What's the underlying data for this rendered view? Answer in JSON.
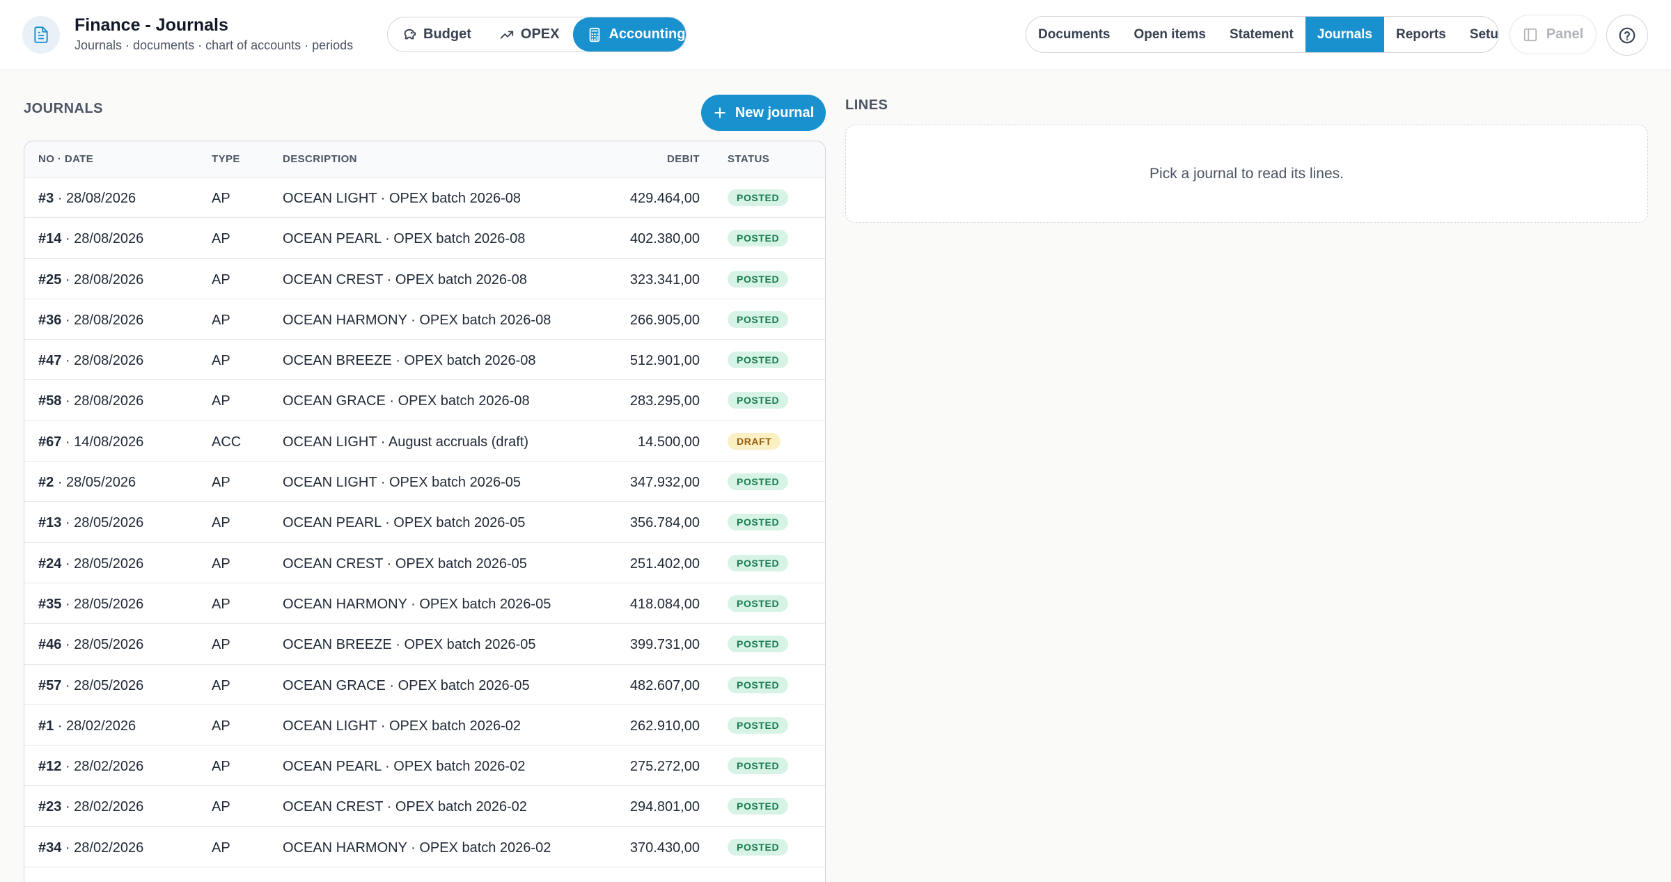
{
  "header": {
    "title": "Finance - Journals",
    "subtitle": "Journals · documents · chart of accounts · periods",
    "app_icon": "document-icon",
    "modules": [
      {
        "label": "Budget",
        "icon": "piggy-bank-icon",
        "active": false
      },
      {
        "label": "OPEX",
        "icon": "trend-up-icon",
        "active": false
      },
      {
        "label": "Accounting",
        "icon": "calculator-icon",
        "active": true
      }
    ],
    "subnav": [
      {
        "label": "Documents",
        "active": false
      },
      {
        "label": "Open items",
        "active": false
      },
      {
        "label": "Statement",
        "active": false
      },
      {
        "label": "Journals",
        "active": true
      },
      {
        "label": "Reports",
        "active": false
      },
      {
        "label": "Setup",
        "active": false
      }
    ],
    "panel_label": "Panel",
    "help_icon": "question-circle-icon"
  },
  "journals": {
    "section_title": "JOURNALS",
    "new_button_label": "New journal",
    "columns": {
      "no_date": "NO · DATE",
      "type": "TYPE",
      "description": "DESCRIPTION",
      "debit": "DEBIT",
      "status": "STATUS"
    },
    "rows": [
      {
        "no": "#3",
        "date": "28/08/2026",
        "type": "AP",
        "description": "OCEAN LIGHT · OPEX batch 2026-08",
        "debit": "429.464,00",
        "status": "POSTED"
      },
      {
        "no": "#14",
        "date": "28/08/2026",
        "type": "AP",
        "description": "OCEAN PEARL · OPEX batch 2026-08",
        "debit": "402.380,00",
        "status": "POSTED"
      },
      {
        "no": "#25",
        "date": "28/08/2026",
        "type": "AP",
        "description": "OCEAN CREST · OPEX batch 2026-08",
        "debit": "323.341,00",
        "status": "POSTED"
      },
      {
        "no": "#36",
        "date": "28/08/2026",
        "type": "AP",
        "description": "OCEAN HARMONY · OPEX batch 2026-08",
        "debit": "266.905,00",
        "status": "POSTED"
      },
      {
        "no": "#47",
        "date": "28/08/2026",
        "type": "AP",
        "description": "OCEAN BREEZE · OPEX batch 2026-08",
        "debit": "512.901,00",
        "status": "POSTED"
      },
      {
        "no": "#58",
        "date": "28/08/2026",
        "type": "AP",
        "description": "OCEAN GRACE · OPEX batch 2026-08",
        "debit": "283.295,00",
        "status": "POSTED"
      },
      {
        "no": "#67",
        "date": "14/08/2026",
        "type": "ACC",
        "description": "OCEAN LIGHT · August accruals (draft)",
        "debit": "14.500,00",
        "status": "DRAFT"
      },
      {
        "no": "#2",
        "date": "28/05/2026",
        "type": "AP",
        "description": "OCEAN LIGHT · OPEX batch 2026-05",
        "debit": "347.932,00",
        "status": "POSTED"
      },
      {
        "no": "#13",
        "date": "28/05/2026",
        "type": "AP",
        "description": "OCEAN PEARL · OPEX batch 2026-05",
        "debit": "356.784,00",
        "status": "POSTED"
      },
      {
        "no": "#24",
        "date": "28/05/2026",
        "type": "AP",
        "description": "OCEAN CREST · OPEX batch 2026-05",
        "debit": "251.402,00",
        "status": "POSTED"
      },
      {
        "no": "#35",
        "date": "28/05/2026",
        "type": "AP",
        "description": "OCEAN HARMONY · OPEX batch 2026-05",
        "debit": "418.084,00",
        "status": "POSTED"
      },
      {
        "no": "#46",
        "date": "28/05/2026",
        "type": "AP",
        "description": "OCEAN BREEZE · OPEX batch 2026-05",
        "debit": "399.731,00",
        "status": "POSTED"
      },
      {
        "no": "#57",
        "date": "28/05/2026",
        "type": "AP",
        "description": "OCEAN GRACE · OPEX batch 2026-05",
        "debit": "482.607,00",
        "status": "POSTED"
      },
      {
        "no": "#1",
        "date": "28/02/2026",
        "type": "AP",
        "description": "OCEAN LIGHT · OPEX batch 2026-02",
        "debit": "262.910,00",
        "status": "POSTED"
      },
      {
        "no": "#12",
        "date": "28/02/2026",
        "type": "AP",
        "description": "OCEAN PEARL · OPEX batch 2026-02",
        "debit": "275.272,00",
        "status": "POSTED"
      },
      {
        "no": "#23",
        "date": "28/02/2026",
        "type": "AP",
        "description": "OCEAN CREST · OPEX batch 2026-02",
        "debit": "294.801,00",
        "status": "POSTED"
      },
      {
        "no": "#34",
        "date": "28/02/2026",
        "type": "AP",
        "description": "OCEAN HARMONY · OPEX batch 2026-02",
        "debit": "370.430,00",
        "status": "POSTED"
      }
    ]
  },
  "lines": {
    "section_title": "LINES",
    "empty_text": "Pick a journal to read its lines."
  },
  "colors": {
    "accent": "#1a91cf",
    "posted_bg": "#d7f3e6",
    "posted_text": "#1b7a4e",
    "draft_bg": "#fbefc4",
    "draft_text": "#935f0d"
  }
}
